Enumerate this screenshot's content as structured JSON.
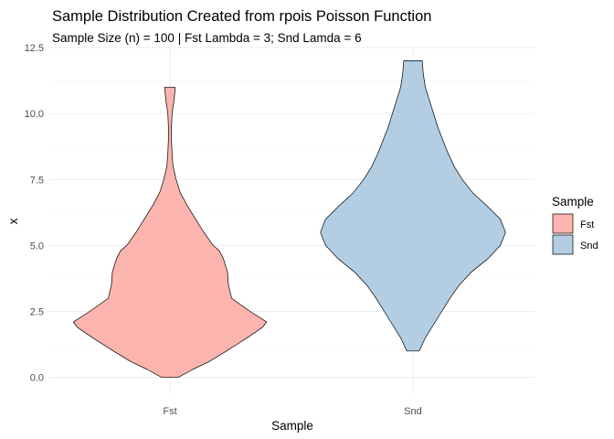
{
  "chart_data": {
    "type": "violin",
    "title": "Sample Distribution Created from rpois Poisson Function",
    "subtitle": "Sample Size (n) = 100 | Fst Lambda = 3; Snd Lamda = 6",
    "xlabel": "Sample",
    "ylabel": "x",
    "categories": [
      "Fst",
      "Snd"
    ],
    "ylim": [
      -0.6,
      12.5
    ],
    "yticks": [
      0.0,
      2.5,
      5.0,
      7.5,
      10.0,
      12.5
    ],
    "ytick_labels": [
      "0.0",
      "2.5",
      "5.0",
      "7.5",
      "10.0",
      "12.5"
    ],
    "grid": true,
    "legend": {
      "title": "Sample",
      "position": "right",
      "entries": [
        "Fst",
        "Snd"
      ]
    },
    "colors": {
      "Fst": "#fbb4ae",
      "Snd": "#b3cde3",
      "outline": "#000000"
    },
    "series": [
      {
        "name": "Fst",
        "range": [
          0,
          11
        ],
        "density_profile": [
          [
            0.0,
            0.08
          ],
          [
            0.3,
            0.22
          ],
          [
            0.6,
            0.38
          ],
          [
            1.0,
            0.55
          ],
          [
            1.5,
            0.75
          ],
          [
            1.9,
            0.9
          ],
          [
            2.1,
            0.94
          ],
          [
            2.5,
            0.78
          ],
          [
            3.0,
            0.6
          ],
          [
            3.5,
            0.57
          ],
          [
            4.0,
            0.56
          ],
          [
            4.5,
            0.52
          ],
          [
            4.8,
            0.48
          ],
          [
            5.0,
            0.42
          ],
          [
            5.5,
            0.33
          ],
          [
            6.0,
            0.25
          ],
          [
            6.5,
            0.17
          ],
          [
            7.0,
            0.1
          ],
          [
            7.5,
            0.06
          ],
          [
            8.0,
            0.03
          ],
          [
            8.5,
            0.02
          ],
          [
            9.0,
            0.015
          ],
          [
            9.5,
            0.015
          ],
          [
            10.0,
            0.02
          ],
          [
            10.5,
            0.04
          ],
          [
            10.9,
            0.05
          ],
          [
            11.0,
            0.05
          ]
        ]
      },
      {
        "name": "Snd",
        "range": [
          1,
          12
        ],
        "density_profile": [
          [
            1.0,
            0.06
          ],
          [
            1.5,
            0.12
          ],
          [
            2.0,
            0.2
          ],
          [
            2.5,
            0.28
          ],
          [
            3.0,
            0.36
          ],
          [
            3.5,
            0.45
          ],
          [
            4.0,
            0.57
          ],
          [
            4.5,
            0.73
          ],
          [
            5.0,
            0.85
          ],
          [
            5.5,
            0.9
          ],
          [
            6.0,
            0.85
          ],
          [
            6.5,
            0.72
          ],
          [
            7.0,
            0.58
          ],
          [
            7.5,
            0.48
          ],
          [
            8.0,
            0.4
          ],
          [
            8.5,
            0.34
          ],
          [
            9.0,
            0.29
          ],
          [
            9.5,
            0.24
          ],
          [
            10.0,
            0.2
          ],
          [
            10.5,
            0.16
          ],
          [
            11.0,
            0.12
          ],
          [
            11.5,
            0.1
          ],
          [
            12.0,
            0.09
          ]
        ]
      }
    ]
  }
}
